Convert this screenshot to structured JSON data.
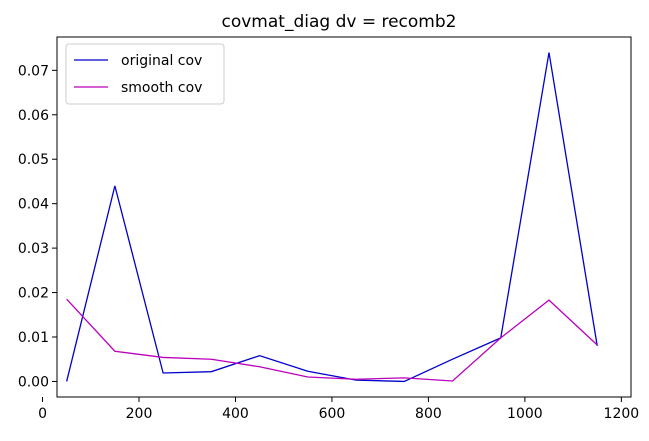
{
  "chart_data": {
    "type": "line",
    "title": "covmat_diag dv = recomb2",
    "xlabel": "",
    "ylabel": "",
    "x": [
      50,
      150,
      250,
      350,
      450,
      550,
      650,
      750,
      850,
      950,
      1050,
      1150
    ],
    "xlim": [
      30,
      1220
    ],
    "ylim": [
      -0.0035,
      0.0775
    ],
    "xticks": [
      0,
      200,
      400,
      600,
      800,
      1000,
      1200
    ],
    "yticks": [
      0.0,
      0.01,
      0.02,
      0.03,
      0.04,
      0.05,
      0.06,
      0.07
    ],
    "xtick_labels": [
      "0",
      "200",
      "400",
      "600",
      "800",
      "1000",
      "1200"
    ],
    "ytick_labels": [
      "0.00",
      "0.01",
      "0.02",
      "0.03",
      "0.04",
      "0.05",
      "0.06",
      "0.07"
    ],
    "grid": false,
    "legend_position": "top-left",
    "series": [
      {
        "name": "original cov",
        "color": "#0000cc",
        "values": [
          0.0,
          0.044,
          0.0019,
          0.0022,
          0.0058,
          0.0023,
          0.0003,
          0.0,
          0.005,
          0.0098,
          0.074,
          0.008
        ]
      },
      {
        "name": "smooth cov",
        "color": "#bb00bb",
        "values": [
          0.0185,
          0.0068,
          0.0054,
          0.005,
          0.0033,
          0.001,
          0.0005,
          0.0008,
          0.0001,
          0.0098,
          0.0183,
          0.0082
        ]
      }
    ]
  }
}
